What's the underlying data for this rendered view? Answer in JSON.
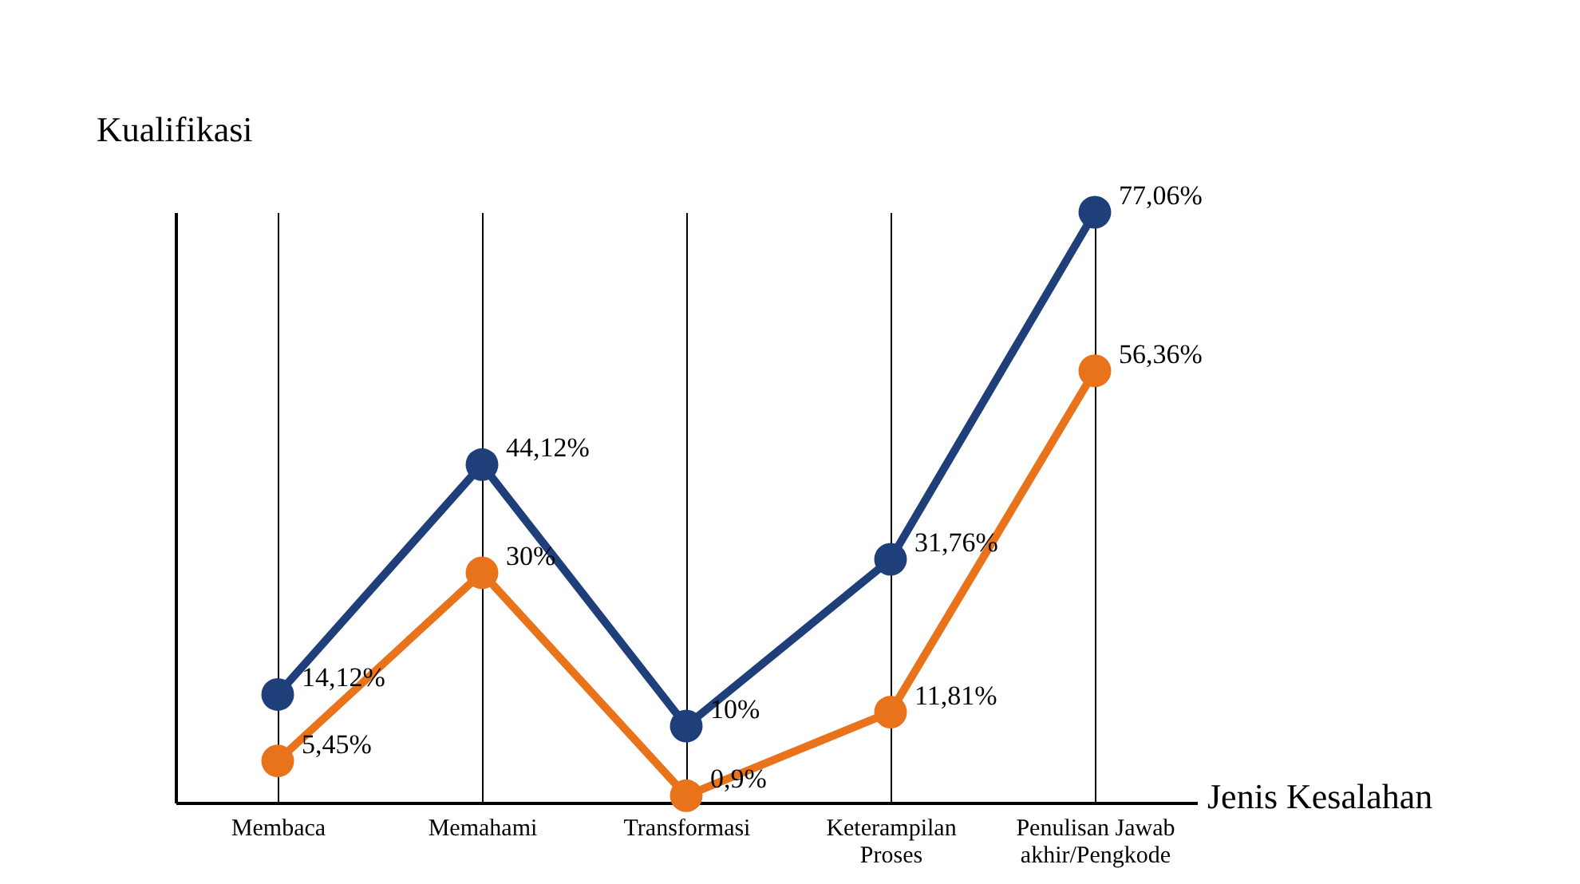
{
  "chart_data": {
    "type": "line",
    "xlabel": "Jenis Kesalahan",
    "ylabel": "Kualifikasi",
    "categories": [
      "Membaca",
      "Memahami",
      "Transformasi",
      "Keterampilan Proses",
      "Penulisan Jawab akhir/Pengkode"
    ],
    "series": [
      {
        "color": "#1f3f7a",
        "values": [
          14.12,
          44.12,
          10,
          31.76,
          77.06
        ],
        "value_labels": [
          "14,12%",
          "44,12%",
          "10%",
          "31,76%",
          "77,06%"
        ]
      },
      {
        "color": "#e8731a",
        "values": [
          5.45,
          30,
          0.9,
          11.81,
          56.36
        ],
        "value_labels": [
          "5,45%",
          "30%",
          "0,9%",
          "11,81%",
          "56,36%"
        ]
      }
    ],
    "tick_labels": "x",
    "grid": "x",
    "legend": false,
    "marker": "circle",
    "line_style": "solid"
  }
}
